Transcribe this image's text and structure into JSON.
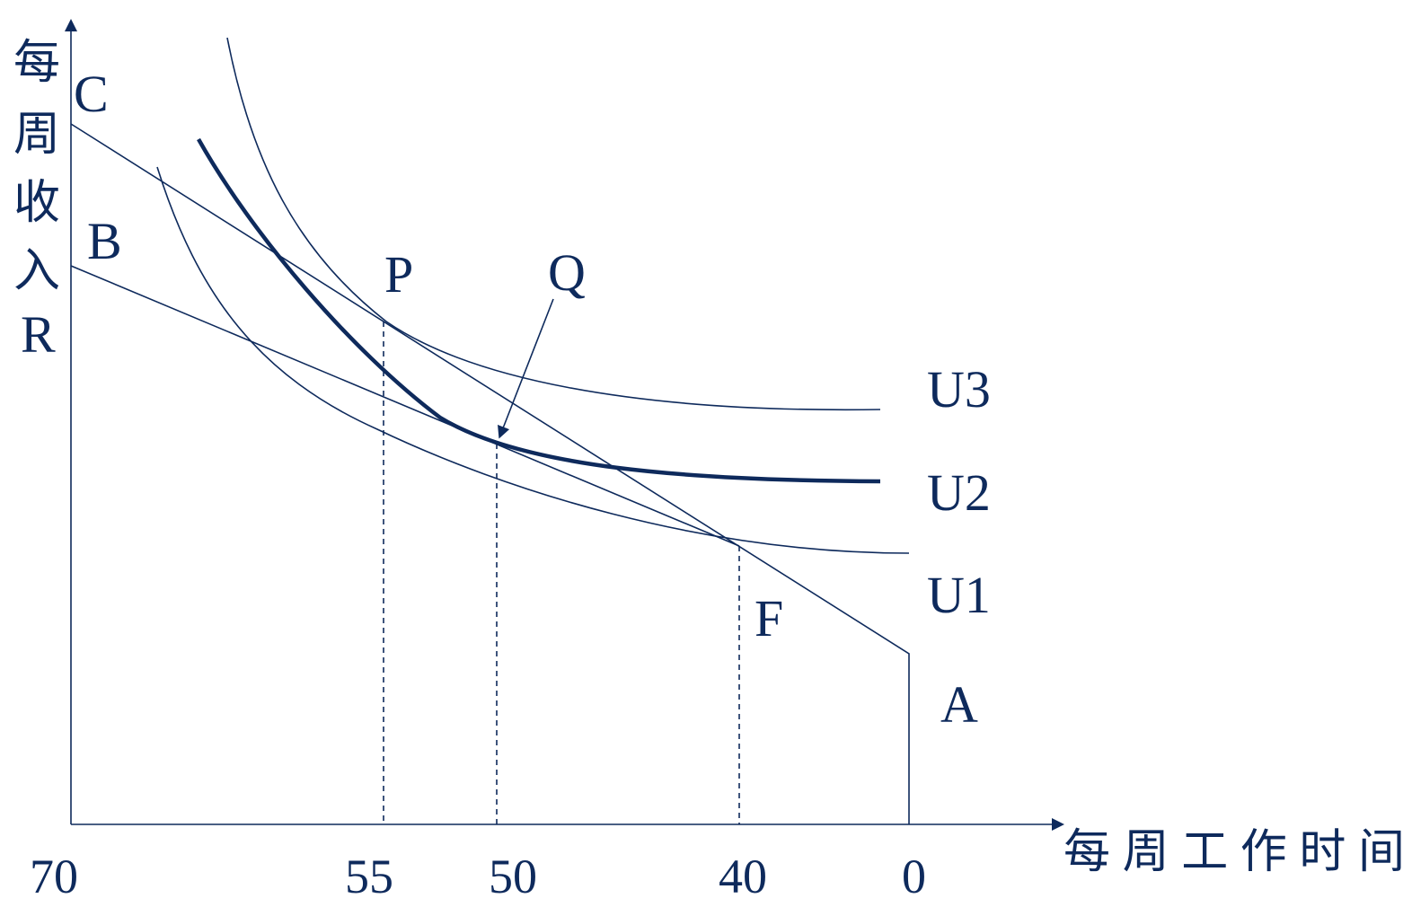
{
  "y_axis_label": [
    "每",
    "周",
    "收",
    "入",
    "R"
  ],
  "x_axis_label": "每周工作时间",
  "x_ticks": [
    "70",
    "55",
    "50",
    "40",
    "0"
  ],
  "points": {
    "C": "C",
    "B": "B",
    "P": "P",
    "Q": "Q",
    "F": "F",
    "A": "A"
  },
  "curves": {
    "U3": "U3",
    "U2": "U2",
    "U1": "U1"
  },
  "colors": {
    "ink": "#0e2a5c",
    "background": "#ffffff"
  }
}
